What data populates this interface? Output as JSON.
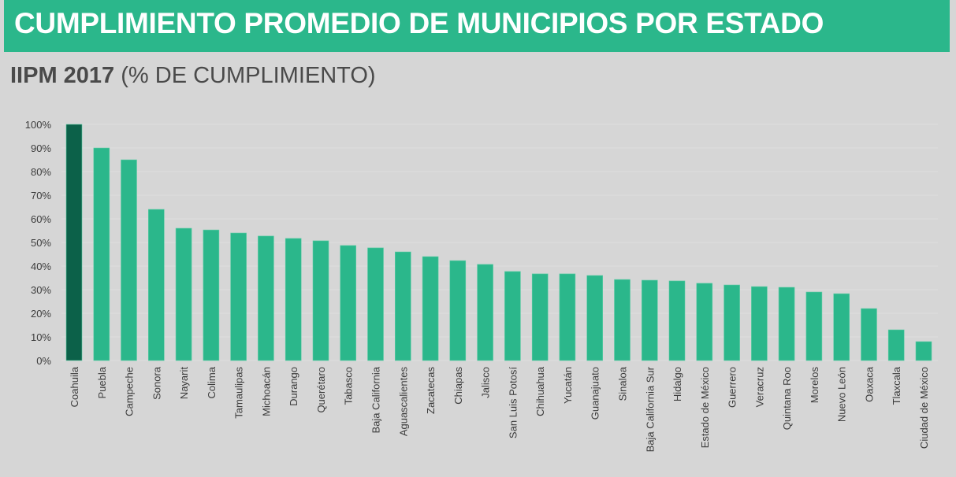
{
  "header": {
    "title": "CUMPLIMIENTO PROMEDIO DE MUNICIPIOS POR ESTADO",
    "subtitle_bold": "IIPM 2017",
    "subtitle_rest": " (% DE CUMPLIMIENTO)"
  },
  "colors": {
    "banner": "#2bb78b",
    "bar": "#2bb78b",
    "highlight_bar": "#0c6149",
    "background": "#d6d6d6"
  },
  "chart_data": {
    "type": "bar",
    "title": "IIPM 2017 (% DE CUMPLIMIENTO)",
    "xlabel": "",
    "ylabel": "",
    "ylim": [
      0,
      100
    ],
    "grid": true,
    "yticks": [
      "0%",
      "10%",
      "20%",
      "30%",
      "40%",
      "50%",
      "60%",
      "70%",
      "80%",
      "90%",
      "100%"
    ],
    "highlight_category": "Coahuila",
    "categories": [
      "Coahuila",
      "Puebla",
      "Campeche",
      "Sonora",
      "Nayarit",
      "Colima",
      "Tamaulipas",
      "Michoacán",
      "Durango",
      "Querétaro",
      "Tabasco",
      "Baja California",
      "Aguascalientes",
      "Zacatecas",
      "Chiapas",
      "Jalisco",
      "San Luis Potosí",
      "Chihuahua",
      "Yucatán",
      "Guanajuato",
      "Sinaloa",
      "Baja California Sur",
      "Hidalgo",
      "Estado de México",
      "Guerrero",
      "Veracruz",
      "Quintana Roo",
      "Morelos",
      "Nuevo León",
      "Oaxaca",
      "Tlaxcala",
      "Ciudad de México"
    ],
    "values": [
      100,
      90,
      85,
      64,
      56,
      55.3,
      54,
      52.7,
      51.7,
      50.7,
      48.7,
      47.7,
      46,
      44,
      42.3,
      40.7,
      37.7,
      36.7,
      36.7,
      36,
      34.3,
      34,
      33.7,
      32.7,
      32,
      31.3,
      31,
      29,
      28.3,
      22,
      13,
      8
    ]
  }
}
